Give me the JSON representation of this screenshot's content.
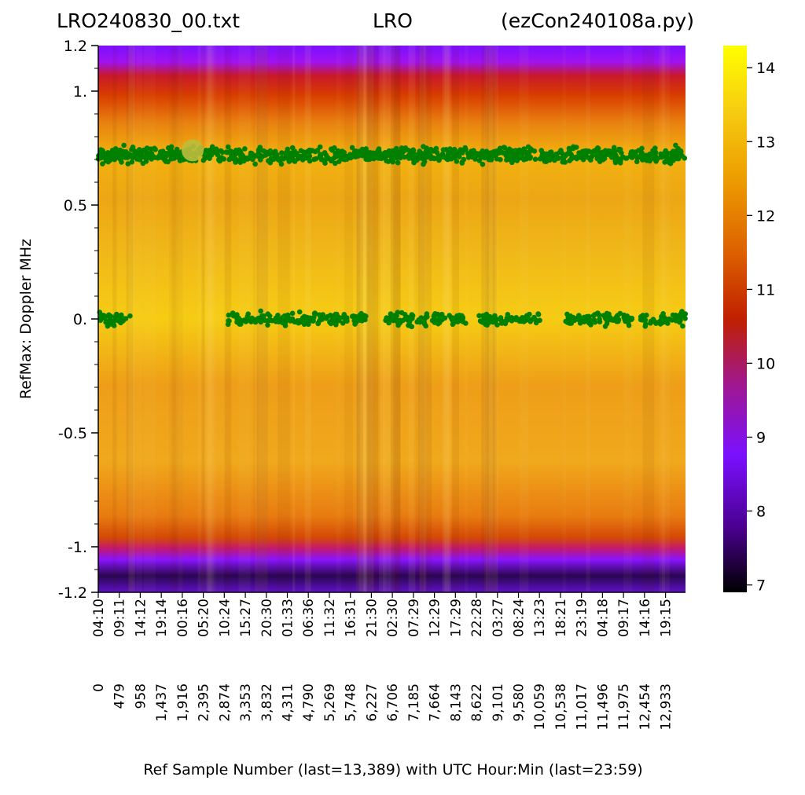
{
  "chart_data": {
    "type": "heatmap",
    "title": {
      "left": "LRO240830_00.txt",
      "center": "LRO",
      "right": "(ezCon240108a.py)"
    },
    "xlabel": "Ref Sample Number (last=13,389) with UTC Hour:Min (last=23:59)",
    "ylabel": "RefMax:  Doppler MHz",
    "x_range": [
      0,
      13389
    ],
    "ylim": [
      -1.2,
      1.2
    ],
    "y_ticks": [
      {
        "value": 1.2,
        "label": "1.2"
      },
      {
        "value": 1.0,
        "label": "1."
      },
      {
        "value": 0.5,
        "label": "0.5"
      },
      {
        "value": 0.0,
        "label": "0."
      },
      {
        "value": -0.5,
        "label": "-0.5"
      },
      {
        "value": -1.0,
        "label": "-1."
      },
      {
        "value": -1.2,
        "label": "-1.2"
      }
    ],
    "x_sample_ticks": [
      0,
      479,
      958,
      1437,
      1916,
      2395,
      2874,
      3353,
      3832,
      4311,
      4790,
      5269,
      5748,
      6227,
      6706,
      7185,
      7664,
      8143,
      8622,
      9101,
      9580,
      10059,
      10538,
      11017,
      11496,
      11975,
      12454,
      12933
    ],
    "x_sample_labels": [
      "0",
      "479",
      "958",
      "1,437",
      "1,916",
      "2,395",
      "2,874",
      "3,353",
      "3,832",
      "4,311",
      "4,790",
      "5,269",
      "5,748",
      "6,227",
      "6,706",
      "7,185",
      "7,664",
      "8,143",
      "8,622",
      "9,101",
      "9,580",
      "10,059",
      "10,538",
      "11,017",
      "11,496",
      "11,975",
      "12,454",
      "12,933"
    ],
    "x_time_labels": [
      "04:10",
      "09:11",
      "14:12",
      "19:14",
      "00:16",
      "05:20",
      "10:24",
      "15:27",
      "20:30",
      "01:33",
      "06:36",
      "11:32",
      "16:31",
      "21:30",
      "02:30",
      "07:29",
      "12:29",
      "17:29",
      "22:28",
      "03:27",
      "08:24",
      "13:23",
      "18:21",
      "23:19",
      "04:18",
      "09:17",
      "14:16",
      "19:15"
    ],
    "colorbar": {
      "colormap": "gnuplot",
      "range": [
        6.9,
        14.3
      ],
      "ticks": [
        7,
        8,
        9,
        10,
        11,
        12,
        13,
        14
      ]
    },
    "scatter_color": "#008000",
    "highlight_point": {
      "x": 2150,
      "y": 0.74,
      "color": "#bcbc3c"
    },
    "series": [
      {
        "y_center": 0.72,
        "y_spread": 0.03,
        "segments": [
          [
            0,
            13389
          ]
        ],
        "density": 4
      },
      {
        "y_center": 0.0,
        "y_spread": 0.025,
        "segments": [
          [
            0,
            730
          ],
          [
            2950,
            6150
          ],
          [
            6550,
            7500
          ],
          [
            7600,
            8380
          ],
          [
            8650,
            10100
          ],
          [
            10650,
            12180
          ],
          [
            12300,
            13389
          ]
        ],
        "density": 3
      }
    ]
  }
}
